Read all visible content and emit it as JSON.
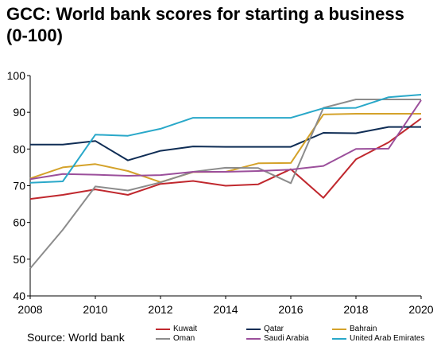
{
  "title": "GCC: World bank scores for starting a business (0-100)",
  "source": "Source: World bank",
  "chart_data": {
    "type": "line",
    "title": "GCC: World bank scores for starting a business (0-100)",
    "xlabel": "",
    "ylabel": "",
    "xlim": [
      2008,
      2020
    ],
    "ylim": [
      40,
      100
    ],
    "x_ticks": [
      2008,
      2010,
      2012,
      2014,
      2016,
      2018,
      2020
    ],
    "y_ticks": [
      40,
      50,
      60,
      70,
      80,
      90,
      100
    ],
    "grid": false,
    "legend_position": "bottom",
    "x": [
      2008,
      2009,
      2010,
      2011,
      2012,
      2013,
      2014,
      2015,
      2016,
      2017,
      2018,
      2019,
      2020
    ],
    "series": [
      {
        "name": "Kuwait",
        "color": "#C0282E",
        "values": [
          66.4,
          67.5,
          69.0,
          67.5,
          70.5,
          71.3,
          70.0,
          70.4,
          74.5,
          66.7,
          77.2,
          81.8,
          88.3
        ]
      },
      {
        "name": "Qatar",
        "color": "#0F2D55",
        "values": [
          81.2,
          81.2,
          82.2,
          76.9,
          79.5,
          80.7,
          80.6,
          80.6,
          80.6,
          84.4,
          84.3,
          86.0,
          86.0
        ]
      },
      {
        "name": "Bahrain",
        "color": "#D4A22A",
        "values": [
          72.0,
          75.0,
          75.9,
          74.0,
          71.0,
          73.7,
          73.8,
          76.1,
          76.2,
          89.4,
          89.6,
          89.6,
          89.6
        ]
      },
      {
        "name": "Oman",
        "color": "#8C8C8C",
        "values": [
          47.5,
          58.0,
          69.8,
          68.7,
          70.9,
          73.8,
          74.9,
          74.8,
          70.7,
          91.2,
          93.5,
          93.5,
          93.5
        ]
      },
      {
        "name": "Saudi Arabia",
        "color": "#9B4F9B",
        "values": [
          71.8,
          73.2,
          73.0,
          72.7,
          72.9,
          73.8,
          73.8,
          74.0,
          74.4,
          75.4,
          80.0,
          80.1,
          93.3
        ]
      },
      {
        "name": "United Arab Emirates",
        "color": "#29A8C9",
        "values": [
          70.8,
          71.2,
          83.9,
          83.6,
          85.5,
          88.5,
          88.5,
          88.5,
          88.5,
          91.1,
          91.2,
          94.1,
          94.8
        ]
      }
    ]
  }
}
